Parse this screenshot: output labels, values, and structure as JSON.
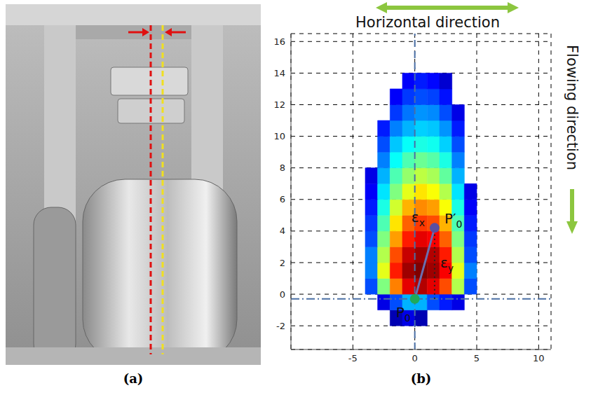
{
  "panel_a": {
    "label": "(a)"
  },
  "chart_data": {
    "type": "heatmap",
    "panel_label": "(b)",
    "xlabel": "Horizontal direction",
    "ylabel": "Flowing direction",
    "xlim": [
      -10,
      11
    ],
    "ylim": [
      -3.5,
      16.5
    ],
    "xticks": [
      -5,
      0,
      5,
      10
    ],
    "yticks": [
      -2,
      0,
      2,
      4,
      6,
      8,
      10,
      12,
      14,
      16
    ],
    "grid": true,
    "x_edges": [
      -4,
      -3,
      -2,
      -1,
      0,
      1,
      2,
      3,
      4,
      5
    ],
    "y_edges": [
      -2,
      -1,
      0,
      1,
      2,
      3,
      4,
      5,
      6,
      7,
      8,
      9,
      10,
      11,
      12,
      13,
      14
    ],
    "zlim": [
      0,
      1
    ],
    "cells": [
      [
        null,
        null,
        0.05,
        0.1,
        0.05,
        null,
        null,
        null,
        null
      ],
      [
        null,
        0.1,
        0.2,
        0.3,
        0.3,
        0.2,
        0.15,
        0.1,
        null
      ],
      [
        0.2,
        0.5,
        0.75,
        0.9,
        0.95,
        0.9,
        0.8,
        0.55,
        0.2
      ],
      [
        0.25,
        0.6,
        0.85,
        0.97,
        1.0,
        0.97,
        0.88,
        0.6,
        0.25
      ],
      [
        0.25,
        0.55,
        0.8,
        0.93,
        0.97,
        0.95,
        0.85,
        0.55,
        0.2
      ],
      [
        0.2,
        0.5,
        0.72,
        0.85,
        0.9,
        0.88,
        0.78,
        0.5,
        0.18
      ],
      [
        0.18,
        0.45,
        0.65,
        0.78,
        0.82,
        0.8,
        0.7,
        0.45,
        0.15
      ],
      [
        0.15,
        0.4,
        0.58,
        0.7,
        0.74,
        0.72,
        0.62,
        0.4,
        0.12
      ],
      [
        0.12,
        0.35,
        0.5,
        0.6,
        0.65,
        0.62,
        0.55,
        0.35,
        0.1
      ],
      [
        0.1,
        0.3,
        0.45,
        0.52,
        0.56,
        0.54,
        0.47,
        0.3,
        null
      ],
      [
        null,
        0.25,
        0.38,
        0.45,
        0.48,
        0.46,
        0.4,
        0.25,
        null
      ],
      [
        null,
        0.2,
        0.32,
        0.38,
        0.4,
        0.39,
        0.33,
        0.2,
        null
      ],
      [
        null,
        0.15,
        0.25,
        0.3,
        0.33,
        0.32,
        0.27,
        0.15,
        null
      ],
      [
        null,
        null,
        0.18,
        0.24,
        0.27,
        0.26,
        0.2,
        0.1,
        null
      ],
      [
        null,
        null,
        0.12,
        0.18,
        0.2,
        0.19,
        0.14,
        null,
        null
      ],
      [
        null,
        null,
        null,
        0.12,
        0.15,
        0.13,
        0.08,
        null,
        null
      ]
    ],
    "points": [
      {
        "label": {
          "base": "P",
          "sub": "0"
        },
        "x": 0,
        "y": -0.3,
        "color": "#1faa5a"
      },
      {
        "label": {
          "base": "P′",
          "sub": "0"
        },
        "x": 1.6,
        "y": 4.2,
        "color": "#5a4fa0"
      }
    ],
    "vector": {
      "from": [
        0,
        -0.3
      ],
      "to": [
        1.6,
        4.2
      ],
      "color": "#6a6fb0",
      "label": {
        "base": "ε",
        "sub": "x"
      }
    },
    "component": {
      "from": [
        1.6,
        -0.3
      ],
      "to": [
        1.6,
        4.2
      ],
      "line_style": "dotted",
      "label": {
        "base": "ε",
        "sub": "y"
      }
    },
    "reference_lines": [
      {
        "axis": "x",
        "value": 0,
        "line_style": "dashed"
      },
      {
        "axis": "y",
        "value": -0.3,
        "line_style": "dashdot"
      }
    ]
  }
}
